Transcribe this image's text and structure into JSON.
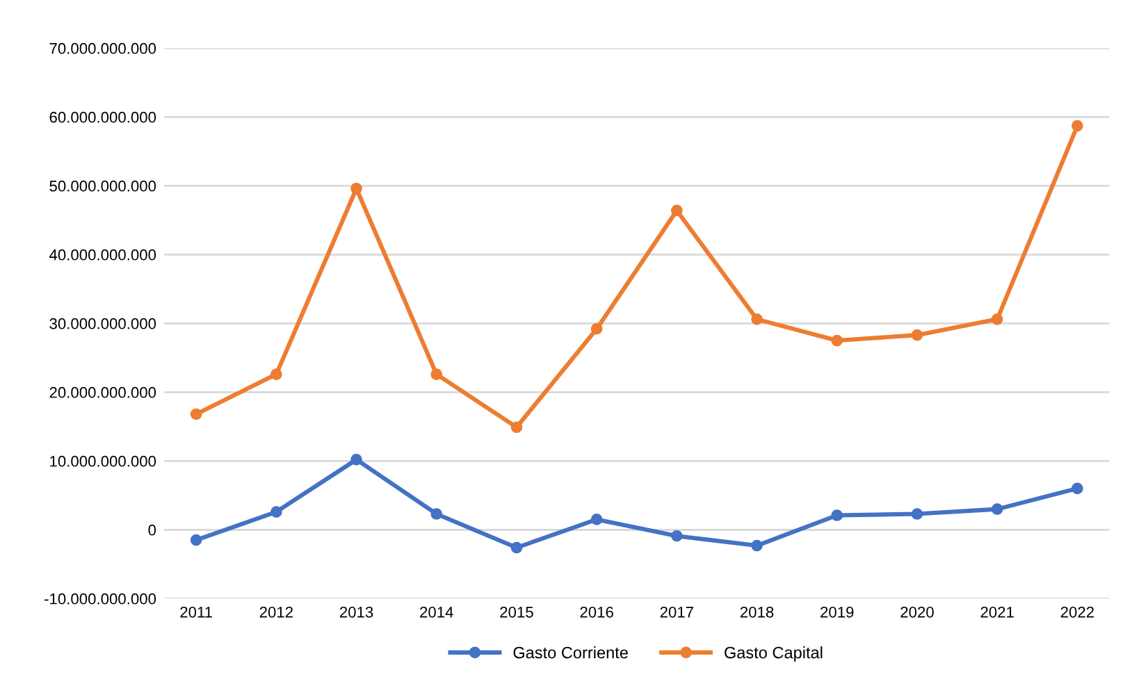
{
  "chart_data": {
    "type": "line",
    "categories": [
      "2011",
      "2012",
      "2013",
      "2014",
      "2015",
      "2016",
      "2017",
      "2018",
      "2019",
      "2020",
      "2021",
      "2022"
    ],
    "series": [
      {
        "name": "Gasto Corriente",
        "color": "#4472c4",
        "values": [
          -1500000000,
          2600000000,
          10200000000,
          2300000000,
          -2600000000,
          1500000000,
          -900000000,
          -2300000000,
          2100000000,
          2300000000,
          3000000000,
          6000000000
        ]
      },
      {
        "name": "Gasto Capital",
        "color": "#ed7d31",
        "values": [
          16800000000,
          22600000000,
          49600000000,
          22600000000,
          14900000000,
          29200000000,
          46400000000,
          30600000000,
          27500000000,
          28300000000,
          30600000000,
          58700000000
        ]
      }
    ],
    "ylim": [
      -10000000000,
      70000000000
    ],
    "yticks": [
      {
        "value": -10000000000,
        "label": "-10.000.000.000"
      },
      {
        "value": 0,
        "label": "0"
      },
      {
        "value": 10000000000,
        "label": "10.000.000.000"
      },
      {
        "value": 20000000000,
        "label": "20.000.000.000"
      },
      {
        "value": 30000000000,
        "label": "30.000.000.000"
      },
      {
        "value": 40000000000,
        "label": "40.000.000.000"
      },
      {
        "value": 50000000000,
        "label": "50.000.000.000"
      },
      {
        "value": 60000000000,
        "label": "60.000.000.000"
      },
      {
        "value": 70000000000,
        "label": "70.000.000.000"
      }
    ],
    "grid": "y",
    "legend": "bottom",
    "marker": "circle",
    "line_style": "solid"
  }
}
